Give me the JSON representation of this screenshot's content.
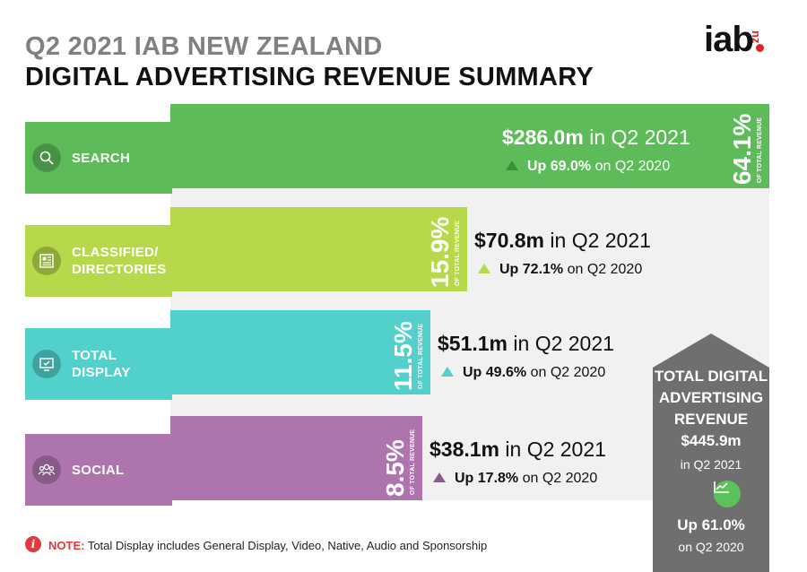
{
  "header": {
    "title_line1": "Q2 2021 IAB NEW ZEALAND",
    "title_line2": "DIGITAL ADVERTISING REVENUE SUMMARY",
    "logo_text": "iab",
    "logo_suffix": "nz"
  },
  "chart_data": {
    "type": "bar",
    "categories": [
      "SEARCH",
      "CLASSIFIED/ DIRECTORIES",
      "TOTAL DISPLAY",
      "SOCIAL"
    ],
    "unit": "$m",
    "series": [
      {
        "values": [
          286.0,
          70.8,
          51.1,
          38.1
        ]
      }
    ],
    "share_of_total_pct": [
      64.1,
      15.9,
      11.5,
      8.5
    ],
    "growth_vs_q2_2020_pct": [
      69.0,
      72.1,
      49.6,
      17.8
    ]
  },
  "segments": [
    {
      "key": "search",
      "label_lines": [
        "SEARCH"
      ],
      "icon": "magnifier-icon",
      "color": "#5dbb5a",
      "fold_color": "#3f8f3d",
      "value": 286.0,
      "pct_text": "64.1",
      "pct_sign": "%",
      "pct_caption": "OF TOTAL REVENUE",
      "amount_text": "$286.0m",
      "amount_suffix": " in Q2 2021",
      "up_text": "Up 69.0%",
      "up_suffix": " on Q2 2020"
    },
    {
      "key": "classified",
      "label_lines": [
        "CLASSIFIED/",
        "DIRECTORIES"
      ],
      "icon": "newspaper-icon",
      "color": "#b5d94a",
      "fold_color": "#86a32f",
      "value": 70.8,
      "pct_text": "15.9",
      "pct_sign": "%",
      "pct_caption": "OF TOTAL REVENUE",
      "amount_text": "$70.8m",
      "amount_suffix": " in Q2 2021",
      "up_text": "Up 72.1%",
      "up_suffix": " on Q2 2020"
    },
    {
      "key": "display",
      "label_lines": [
        "TOTAL",
        "DISPLAY"
      ],
      "icon": "monitor-icon",
      "color": "#52d0cc",
      "fold_color": "#2f9895",
      "value": 51.1,
      "pct_text": "11.5",
      "pct_sign": "%",
      "pct_caption": "OF TOTAL REVENUE",
      "amount_text": "$51.1m",
      "amount_suffix": " in Q2 2021",
      "up_text": "Up 49.6%",
      "up_suffix": " on Q2 2020"
    },
    {
      "key": "social",
      "label_lines": [
        "SOCIAL"
      ],
      "icon": "people-icon",
      "color": "#ae74ae",
      "fold_color": "#7d4f7d",
      "value": 38.1,
      "pct_text": "8.5",
      "pct_sign": "%",
      "pct_caption": "OF TOTAL REVENUE",
      "amount_text": "$38.1m",
      "amount_suffix": " in Q2 2021",
      "up_text": "Up 17.8%",
      "up_suffix": " on Q2 2020"
    }
  ],
  "total": {
    "title_lines": [
      "TOTAL DIGITAL",
      "ADVERTISING",
      "REVENUE"
    ],
    "amount": "$445.9m",
    "period": "in Q2 2021",
    "icon": "growth-chart-icon",
    "up_text": "Up 61.0%",
    "up_period": "on Q2 2020",
    "color": "#6f6f6f",
    "accent": "#5cc15a"
  },
  "note": {
    "icon": "info-icon",
    "label": "NOTE:",
    "text": " Total Display includes General Display, Video, Native, Audio and Sponsorship"
  }
}
